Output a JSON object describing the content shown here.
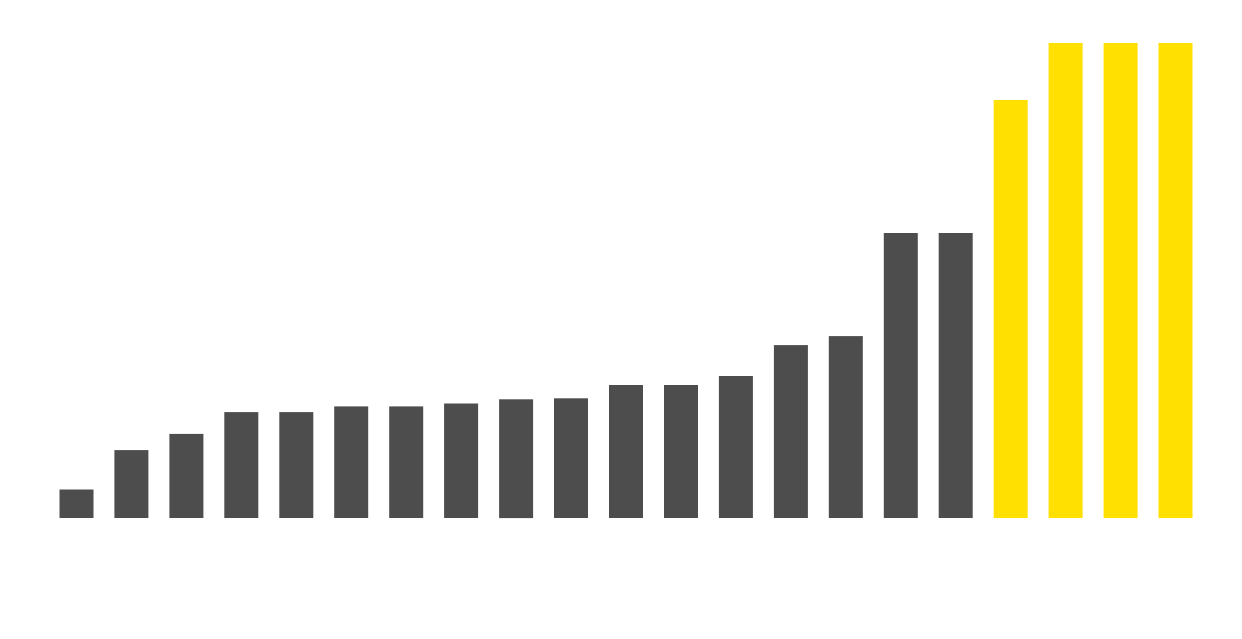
{
  "chart_data": {
    "type": "bar",
    "title": "",
    "xlabel": "",
    "ylabel": "",
    "ylim": [
      0,
      100
    ],
    "grid": false,
    "legend": "none",
    "values": [
      6,
      14.3,
      17.7,
      22.3,
      22.3,
      23.5,
      23.5,
      24.1,
      25,
      25.2,
      28,
      28,
      29.9,
      36.4,
      38.3,
      60,
      60,
      88,
      100,
      100,
      100
    ],
    "colors": {
      "base": "#4d4d4d",
      "highlight": "#ffe000",
      "background": "#ffffff"
    },
    "highlight_indices": [
      17,
      18,
      19,
      20
    ]
  }
}
